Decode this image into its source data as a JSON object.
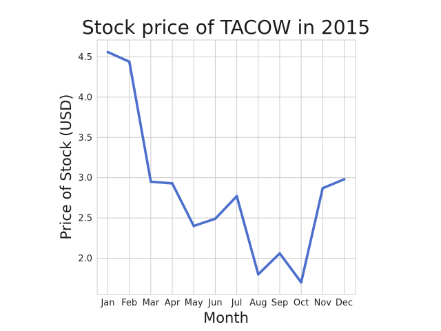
{
  "chart_data": {
    "type": "line",
    "title": "Stock price of TACOW in 2015",
    "xlabel": "Month",
    "ylabel": "Price of Stock (USD)",
    "categories": [
      "Jan",
      "Feb",
      "Mar",
      "Apr",
      "May",
      "Jun",
      "Jul",
      "Aug",
      "Sep",
      "Oct",
      "Nov",
      "Dec"
    ],
    "series": [
      {
        "values": [
          4.56,
          4.44,
          2.95,
          2.93,
          2.4,
          2.49,
          2.77,
          1.8,
          2.06,
          1.7,
          2.87,
          2.98
        ]
      }
    ],
    "yticks": [
      2.0,
      2.5,
      3.0,
      3.5,
      4.0,
      4.5
    ],
    "ytick_labels": [
      "2.0",
      "2.5",
      "3.0",
      "3.5",
      "4.0",
      "4.5"
    ],
    "ylim": [
      1.55,
      4.71
    ],
    "grid": true,
    "legend": "none",
    "colors": {
      "line": "#4C6FCC",
      "grid": "#cccccc",
      "text": "#1a1a1a"
    }
  }
}
